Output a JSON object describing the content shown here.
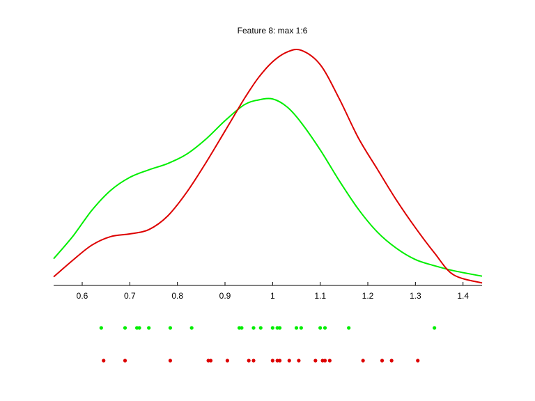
{
  "chart_data": {
    "type": "line",
    "title": "Feature 8: max 1:6",
    "xlabel": "",
    "ylabel": "",
    "xlim": [
      0.54,
      1.44
    ],
    "ylim": [
      0,
      1
    ],
    "xticks": [
      "0.6",
      "0.7",
      "0.8",
      "0.9",
      "1",
      "1.1",
      "1.2",
      "1.3",
      "1.4"
    ],
    "grid": false,
    "series": [
      {
        "color": "#00ee00",
        "density": {
          "x": [
            0.54,
            0.58,
            0.62,
            0.66,
            0.7,
            0.74,
            0.78,
            0.82,
            0.86,
            0.9,
            0.94,
            0.97,
            1.0,
            1.03,
            1.06,
            1.1,
            1.14,
            1.18,
            1.22,
            1.26,
            1.3,
            1.34,
            1.38,
            1.44
          ],
          "y": [
            0.13,
            0.238,
            0.365,
            0.463,
            0.526,
            0.563,
            0.594,
            0.64,
            0.713,
            0.802,
            0.879,
            0.903,
            0.908,
            0.87,
            0.793,
            0.66,
            0.51,
            0.372,
            0.26,
            0.181,
            0.126,
            0.096,
            0.072,
            0.045
          ]
        },
        "samples": [
          0.64,
          0.69,
          0.715,
          0.72,
          0.74,
          0.785,
          0.83,
          0.93,
          0.935,
          0.96,
          0.975,
          1.0,
          1.01,
          1.015,
          1.05,
          1.06,
          1.1,
          1.11,
          1.16,
          1.34
        ]
      },
      {
        "color": "#dd0000",
        "density": {
          "x": [
            0.54,
            0.58,
            0.62,
            0.66,
            0.7,
            0.74,
            0.78,
            0.82,
            0.86,
            0.9,
            0.94,
            0.97,
            1.0,
            1.03,
            1.06,
            1.1,
            1.14,
            1.18,
            1.22,
            1.26,
            1.3,
            1.34,
            1.38,
            1.44
          ],
          "y": [
            0.042,
            0.122,
            0.196,
            0.238,
            0.251,
            0.272,
            0.339,
            0.455,
            0.598,
            0.752,
            0.907,
            1.011,
            1.089,
            1.136,
            1.145,
            1.075,
            0.909,
            0.719,
            0.566,
            0.416,
            0.281,
            0.158,
            0.052,
            0.012
          ]
        },
        "samples": [
          0.645,
          0.69,
          0.785,
          0.865,
          0.87,
          0.905,
          0.95,
          0.96,
          1.0,
          1.01,
          1.015,
          1.035,
          1.055,
          1.09,
          1.105,
          1.11,
          1.12,
          1.19,
          1.23,
          1.25,
          1.305
        ]
      }
    ]
  }
}
